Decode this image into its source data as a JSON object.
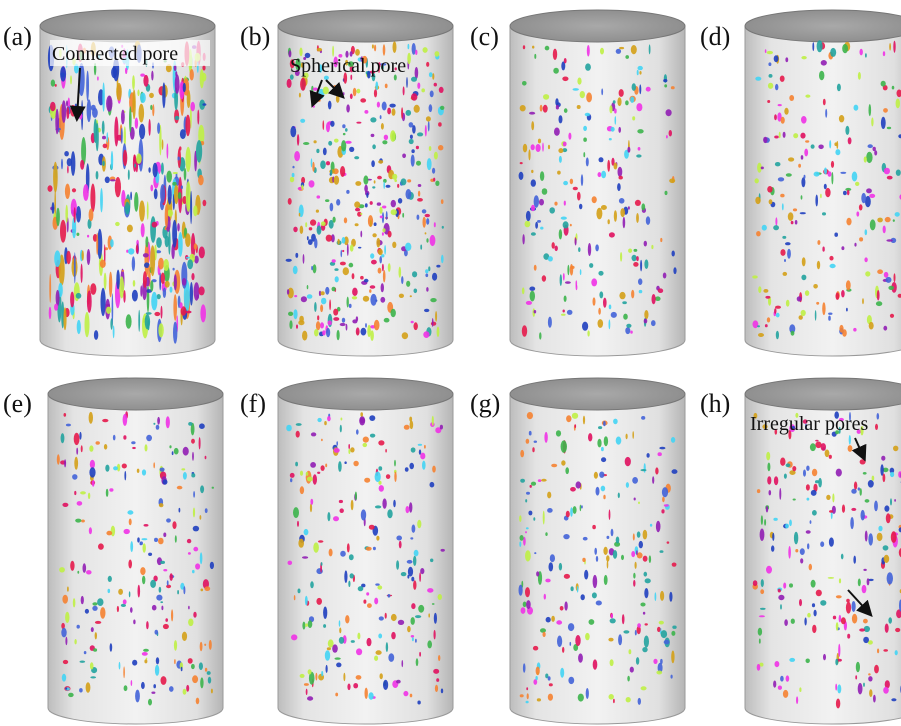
{
  "panels": [
    {
      "label": "(a)",
      "annotation": "Connected pore"
    },
    {
      "label": "(b)",
      "annotation": "Spherical pore"
    },
    {
      "label": "(c)"
    },
    {
      "label": "(d)"
    },
    {
      "label": "(e)"
    },
    {
      "label": "(f)"
    },
    {
      "label": "(g)"
    },
    {
      "label": "(h)",
      "annotation": "Irregular pores"
    }
  ]
}
